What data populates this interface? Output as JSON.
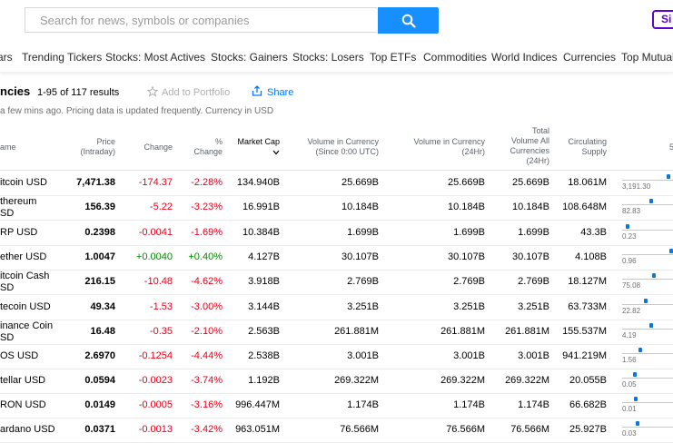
{
  "search": {
    "placeholder": "Search for news, symbols or companies"
  },
  "signin": {
    "label": "Si"
  },
  "nav": [
    "ars",
    "Trending Tickers",
    "Stocks: Most Actives",
    "Stocks: Gainers",
    "Stocks: Losers",
    "Top ETFs",
    "Commodities",
    "World Indices",
    "Currencies",
    "Top Mutual Fu"
  ],
  "page": {
    "title": "ncies",
    "count": "1-95 of 117 results",
    "add_portfolio": "Add to Portfolio",
    "share": "Share",
    "note": "a few mins ago. Pricing data is updated frequently. Currency in USD"
  },
  "columns": {
    "name": "ame",
    "price": [
      "Price",
      "(Intraday)"
    ],
    "change": "Change",
    "pct": [
      "%",
      "Change"
    ],
    "mcap": "Market Cap",
    "vol_cur": [
      "Volume in Currency",
      "(Since 0:00 UTC)"
    ],
    "vol_24": [
      "Volume in Currency",
      "(24Hr)"
    ],
    "total_vol": [
      "Total",
      "Volume All",
      "Currencies",
      "(24Hr)"
    ],
    "supply": [
      "Circulating",
      "Supply"
    ],
    "range": "5"
  },
  "rows": [
    {
      "name": [
        "itcoin USD"
      ],
      "price": "7,471.38",
      "change": "-174.37",
      "pct": "-2.28%",
      "mcap": "134.940B",
      "vol": "25.669B",
      "vol24": "25.669B",
      "total": "25.669B",
      "supply": "18.061M",
      "low": "3,191.30",
      "level": 0.82,
      "dir": "neg"
    },
    {
      "name": [
        "thereum",
        "SD"
      ],
      "price": "156.39",
      "change": "-5.22",
      "pct": "-3.23%",
      "mcap": "16.991B",
      "vol": "10.184B",
      "vol24": "10.184B",
      "total": "10.184B",
      "supply": "108.648M",
      "low": "82.83",
      "level": 0.5,
      "dir": "neg"
    },
    {
      "name": [
        "RP USD"
      ],
      "price": "0.2398",
      "change": "-0.0041",
      "pct": "-1.69%",
      "mcap": "10.384B",
      "vol": "1.699B",
      "vol24": "1.699B",
      "total": "1.699B",
      "supply": "43.3B",
      "low": "0.23",
      "level": 0.07,
      "dir": "neg"
    },
    {
      "name": [
        "ether USD"
      ],
      "price": "1.0047",
      "change": "+0.0040",
      "pct": "+0.40%",
      "mcap": "4.127B",
      "vol": "30.107B",
      "vol24": "30.107B",
      "total": "30.107B",
      "supply": "4.108B",
      "low": "0.96",
      "level": 0.87,
      "dir": "pos"
    },
    {
      "name": [
        "itcoin Cash",
        "SD"
      ],
      "price": "216.15",
      "change": "-10.48",
      "pct": "-4.62%",
      "mcap": "3.918B",
      "vol": "2.769B",
      "vol24": "2.769B",
      "total": "2.769B",
      "supply": "18.127M",
      "low": "75.08",
      "level": 0.55,
      "dir": "neg"
    },
    {
      "name": [
        "tecoin USD"
      ],
      "price": "49.34",
      "change": "-1.53",
      "pct": "-3.00%",
      "mcap": "3.144B",
      "vol": "3.251B",
      "vol24": "3.251B",
      "total": "3.251B",
      "supply": "63.733M",
      "low": "22.82",
      "level": 0.4,
      "dir": "neg"
    },
    {
      "name": [
        "inance Coin",
        "SD"
      ],
      "price": "16.48",
      "change": "-0.35",
      "pct": "-2.10%",
      "mcap": "2.563B",
      "vol": "261.881M",
      "vol24": "261.881M",
      "total": "261.881M",
      "supply": "155.537M",
      "low": "4.19",
      "level": 0.5,
      "dir": "neg"
    },
    {
      "name": [
        "OS USD"
      ],
      "price": "2.6970",
      "change": "-0.1254",
      "pct": "-4.44%",
      "mcap": "2.538B",
      "vol": "3.001B",
      "vol24": "3.001B",
      "total": "3.001B",
      "supply": "941.219M",
      "low": "1.56",
      "level": 0.3,
      "dir": "neg"
    },
    {
      "name": [
        "tellar USD"
      ],
      "price": "0.0594",
      "change": "-0.0023",
      "pct": "-3.74%",
      "mcap": "1.192B",
      "vol": "269.322M",
      "vol24": "269.322M",
      "total": "269.322M",
      "supply": "20.055B",
      "low": "0.05",
      "level": 0.2,
      "dir": "neg"
    },
    {
      "name": [
        "RON USD"
      ],
      "price": "0.0149",
      "change": "-0.0005",
      "pct": "-3.16%",
      "mcap": "996.447M",
      "vol": "1.174B",
      "vol24": "1.174B",
      "total": "1.174B",
      "supply": "66.682B",
      "low": "0.01",
      "level": 0.22,
      "dir": "neg"
    },
    {
      "name": [
        "ardano USD"
      ],
      "price": "0.0371",
      "change": "-0.0013",
      "pct": "-3.42%",
      "mcap": "963.051M",
      "vol": "76.566M",
      "vol24": "76.566M",
      "total": "76.566M",
      "supply": "25.927B",
      "low": "0.03",
      "level": 0.25,
      "dir": "neg"
    }
  ],
  "colors": {
    "accent": "#188fff",
    "negative": "#e6001a",
    "positive": "#008a00",
    "signin": "#6001d2",
    "link": "#0078ff"
  }
}
